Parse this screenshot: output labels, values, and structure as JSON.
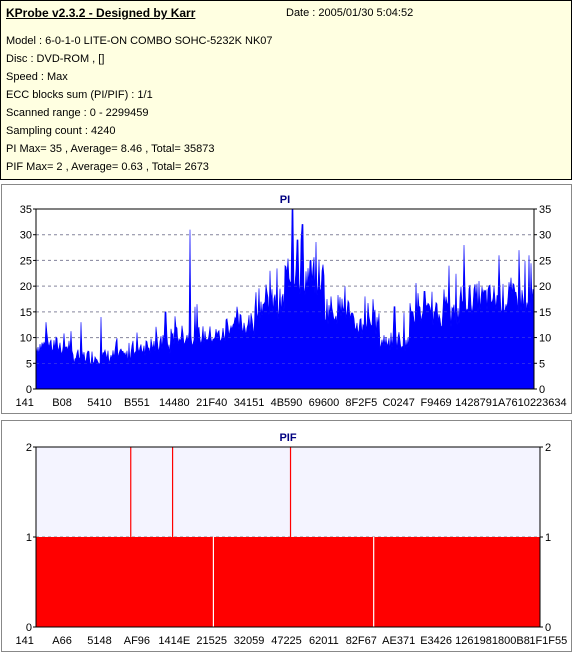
{
  "info": {
    "title": "KProbe v2.3.2 - Designed by Karr",
    "date": "Date : 2005/01/30 5:04:52",
    "lines": [
      "Model : 6-0-1-0 LITE-ON COMBO SOHC-5232K NK07",
      "Disc : DVD-ROM ,  []",
      "Speed : Max",
      "ECC blocks sum (PI/PIF) : 1/1",
      "Scanned range : 0 - 2299459",
      "Sampling count : 4240",
      "PI Max= 35 , Average= 8.46 , Total= 35873",
      "PIF Max= 2 , Average= 0.63 , Total= 2673"
    ]
  },
  "colors": {
    "pi_fill": "#0000ff",
    "pif_fill": "#ff0000",
    "pif_bg": "#f4f4ff",
    "grid": "#888888",
    "title": "#000080",
    "info_bg": "#ffffe1"
  },
  "chart_data": [
    {
      "type": "area",
      "title": "PI",
      "ylim": [
        0,
        35
      ],
      "yticks": [
        0,
        5,
        10,
        15,
        20,
        25,
        30,
        35
      ],
      "grid": true,
      "xtick_labels": [
        "141",
        "B08",
        "5410",
        "B551",
        "14480",
        "21F40",
        "34151",
        "4B590",
        "69600",
        "8F2F5",
        "C0247",
        "F9469",
        "142879",
        "1A7610",
        "223634"
      ],
      "segments": [
        {
          "from": 0.0,
          "to": 0.07,
          "base": 8,
          "amp": 4
        },
        {
          "from": 0.07,
          "to": 0.19,
          "base": 6,
          "amp": 3
        },
        {
          "from": 0.19,
          "to": 0.27,
          "base": 8,
          "amp": 4
        },
        {
          "from": 0.27,
          "to": 0.38,
          "base": 10,
          "amp": 4
        },
        {
          "from": 0.38,
          "to": 0.44,
          "base": 12,
          "amp": 5
        },
        {
          "from": 0.44,
          "to": 0.5,
          "base": 16,
          "amp": 6
        },
        {
          "from": 0.5,
          "to": 0.58,
          "base": 21,
          "amp": 8
        },
        {
          "from": 0.58,
          "to": 0.63,
          "base": 15,
          "amp": 6
        },
        {
          "from": 0.63,
          "to": 0.69,
          "base": 12,
          "amp": 5
        },
        {
          "from": 0.69,
          "to": 0.75,
          "base": 9,
          "amp": 4
        },
        {
          "from": 0.75,
          "to": 0.85,
          "base": 14,
          "amp": 5
        },
        {
          "from": 0.85,
          "to": 1.0,
          "base": 17,
          "amp": 6
        }
      ],
      "peaks": [
        [
          0.02,
          13
        ],
        [
          0.09,
          13
        ],
        [
          0.13,
          14
        ],
        [
          0.26,
          15
        ],
        [
          0.31,
          31
        ],
        [
          0.44,
          16
        ],
        [
          0.47,
          23
        ],
        [
          0.5,
          24
        ],
        [
          0.515,
          35
        ],
        [
          0.525,
          29
        ],
        [
          0.535,
          32
        ],
        [
          0.55,
          25
        ],
        [
          0.575,
          23
        ],
        [
          0.62,
          20
        ],
        [
          0.66,
          18
        ],
        [
          0.72,
          16
        ],
        [
          0.78,
          19
        ],
        [
          0.83,
          24
        ],
        [
          0.86,
          28
        ],
        [
          0.89,
          21
        ],
        [
          0.93,
          26
        ],
        [
          0.97,
          27
        ],
        [
          0.99,
          26
        ]
      ]
    },
    {
      "type": "area",
      "title": "PIF",
      "ylim": [
        0,
        2
      ],
      "yticks": [
        0,
        1,
        2
      ],
      "grid": true,
      "xtick_labels": [
        "141",
        "A66",
        "5148",
        "AF96",
        "1414E",
        "21525",
        "32059",
        "47225",
        "62011",
        "82F67",
        "AE371",
        "E3426",
        "126198",
        "1800B8",
        "1F1F55"
      ],
      "base_level": 1,
      "spikes_to_2": [
        0.188,
        0.271,
        0.505
      ],
      "gaps": [
        0.352,
        0.67
      ]
    }
  ]
}
